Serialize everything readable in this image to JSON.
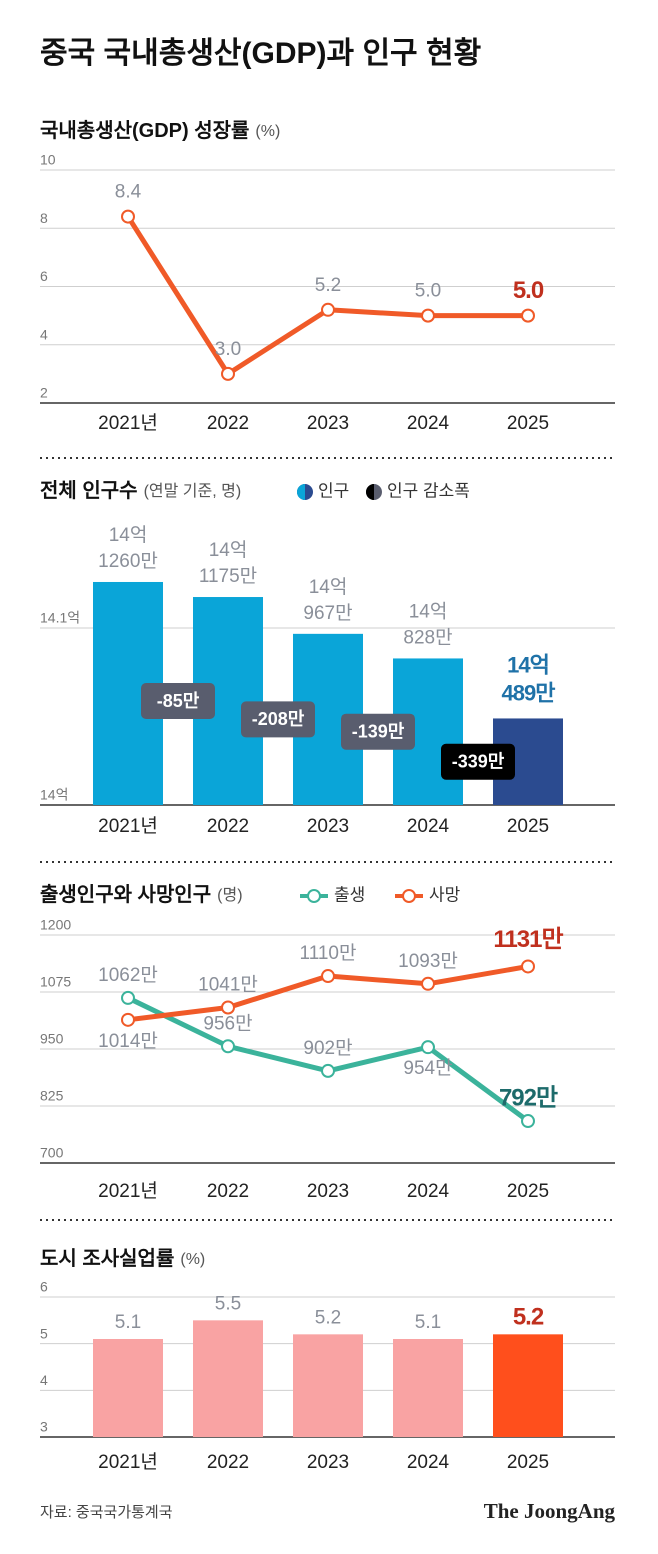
{
  "title": "중국 국내총생산(GDP)과 인구 현황",
  "source": "자료: 중국국가통계국",
  "logo": "The JoongAng",
  "chart_data": [
    {
      "type": "line",
      "title": "국내총생산(GDP) 성장률",
      "subtitle": "(%)",
      "categories": [
        "2021년",
        "2022",
        "2023",
        "2024",
        "2025"
      ],
      "values": [
        8.4,
        3.0,
        5.2,
        5.0,
        5.0
      ],
      "value_labels": [
        "8.4",
        "3.0",
        "5.2",
        "5.0",
        "5.0"
      ],
      "color": "#f05a28",
      "label_color": "#8a8f99",
      "highlight_label_color": "#c0301e",
      "ylim": [
        2,
        10
      ],
      "yticks": [
        2,
        4,
        6,
        8,
        10
      ],
      "grid": true
    },
    {
      "type": "bar",
      "title": "전체 인구수",
      "subtitle": "(연말 기준, 명)",
      "categories": [
        "2021년",
        "2022",
        "2023",
        "2024",
        "2025"
      ],
      "series": [
        {
          "name": "인구",
          "values": [
            14.126,
            14.1175,
            14.0967,
            14.0828,
            14.0489
          ],
          "value_labels": [
            [
              "14억",
              "1260만"
            ],
            [
              "14억",
              "1175만"
            ],
            [
              "14억",
              "967만"
            ],
            [
              "14억",
              "828만"
            ],
            [
              "14억",
              "489만"
            ]
          ],
          "colors": [
            "#0aa5d8",
            "#0aa5d8",
            "#0aa5d8",
            "#0aa5d8",
            "#2b4b90"
          ]
        },
        {
          "name": "인구 감소폭",
          "values": [
            null,
            -85,
            -208,
            -139,
            -339
          ],
          "value_labels": [
            null,
            "-85만",
            "-208만",
            "-139만",
            "-339만"
          ],
          "colors": [
            null,
            "#595d6e",
            "#595d6e",
            "#595d6e",
            "#000000"
          ]
        }
      ],
      "label_color": "#8a8f99",
      "highlight_label_color": "#1f72a8",
      "ylim": [
        14,
        14.15
      ],
      "yticks": [
        {
          "value": 14,
          "label": "14억"
        },
        {
          "value": 14.1,
          "label": "14.1억"
        }
      ],
      "grid": true
    },
    {
      "type": "line",
      "title": "출생인구와 사망인구",
      "subtitle": "(명)",
      "categories": [
        "2021년",
        "2022",
        "2023",
        "2024",
        "2025"
      ],
      "series": [
        {
          "name": "출생",
          "color": "#3bb39b",
          "values": [
            1062,
            956,
            902,
            954,
            792
          ],
          "value_labels": [
            "1062만",
            "956만",
            "902만",
            "954만",
            "792만"
          ],
          "highlight_label_color": "#1d6b6b"
        },
        {
          "name": "사망",
          "color": "#f05a28",
          "values": [
            1014,
            1041,
            1110,
            1093,
            1131
          ],
          "value_labels": [
            "1014만",
            "1041만",
            "1110만",
            "1093만",
            "1131만"
          ],
          "highlight_label_color": "#c0301e"
        }
      ],
      "label_color": "#8a8f99",
      "ylim": [
        700,
        1200
      ],
      "yticks": [
        700,
        825,
        950,
        1075,
        1200
      ],
      "grid": true
    },
    {
      "type": "bar",
      "title": "도시 조사실업률",
      "subtitle": "(%)",
      "categories": [
        "2021년",
        "2022",
        "2023",
        "2024",
        "2025"
      ],
      "values": [
        5.1,
        5.5,
        5.2,
        5.1,
        5.2
      ],
      "value_labels": [
        "5.1",
        "5.5",
        "5.2",
        "5.1",
        "5.2"
      ],
      "colors": [
        "#f9a3a3",
        "#f9a3a3",
        "#f9a3a3",
        "#f9a3a3",
        "#ff4f1c"
      ],
      "label_color": "#8a8f99",
      "highlight_label_color": "#c0301e",
      "ylim": [
        3,
        6
      ],
      "yticks": [
        3,
        4,
        5,
        6
      ],
      "grid": true
    }
  ]
}
